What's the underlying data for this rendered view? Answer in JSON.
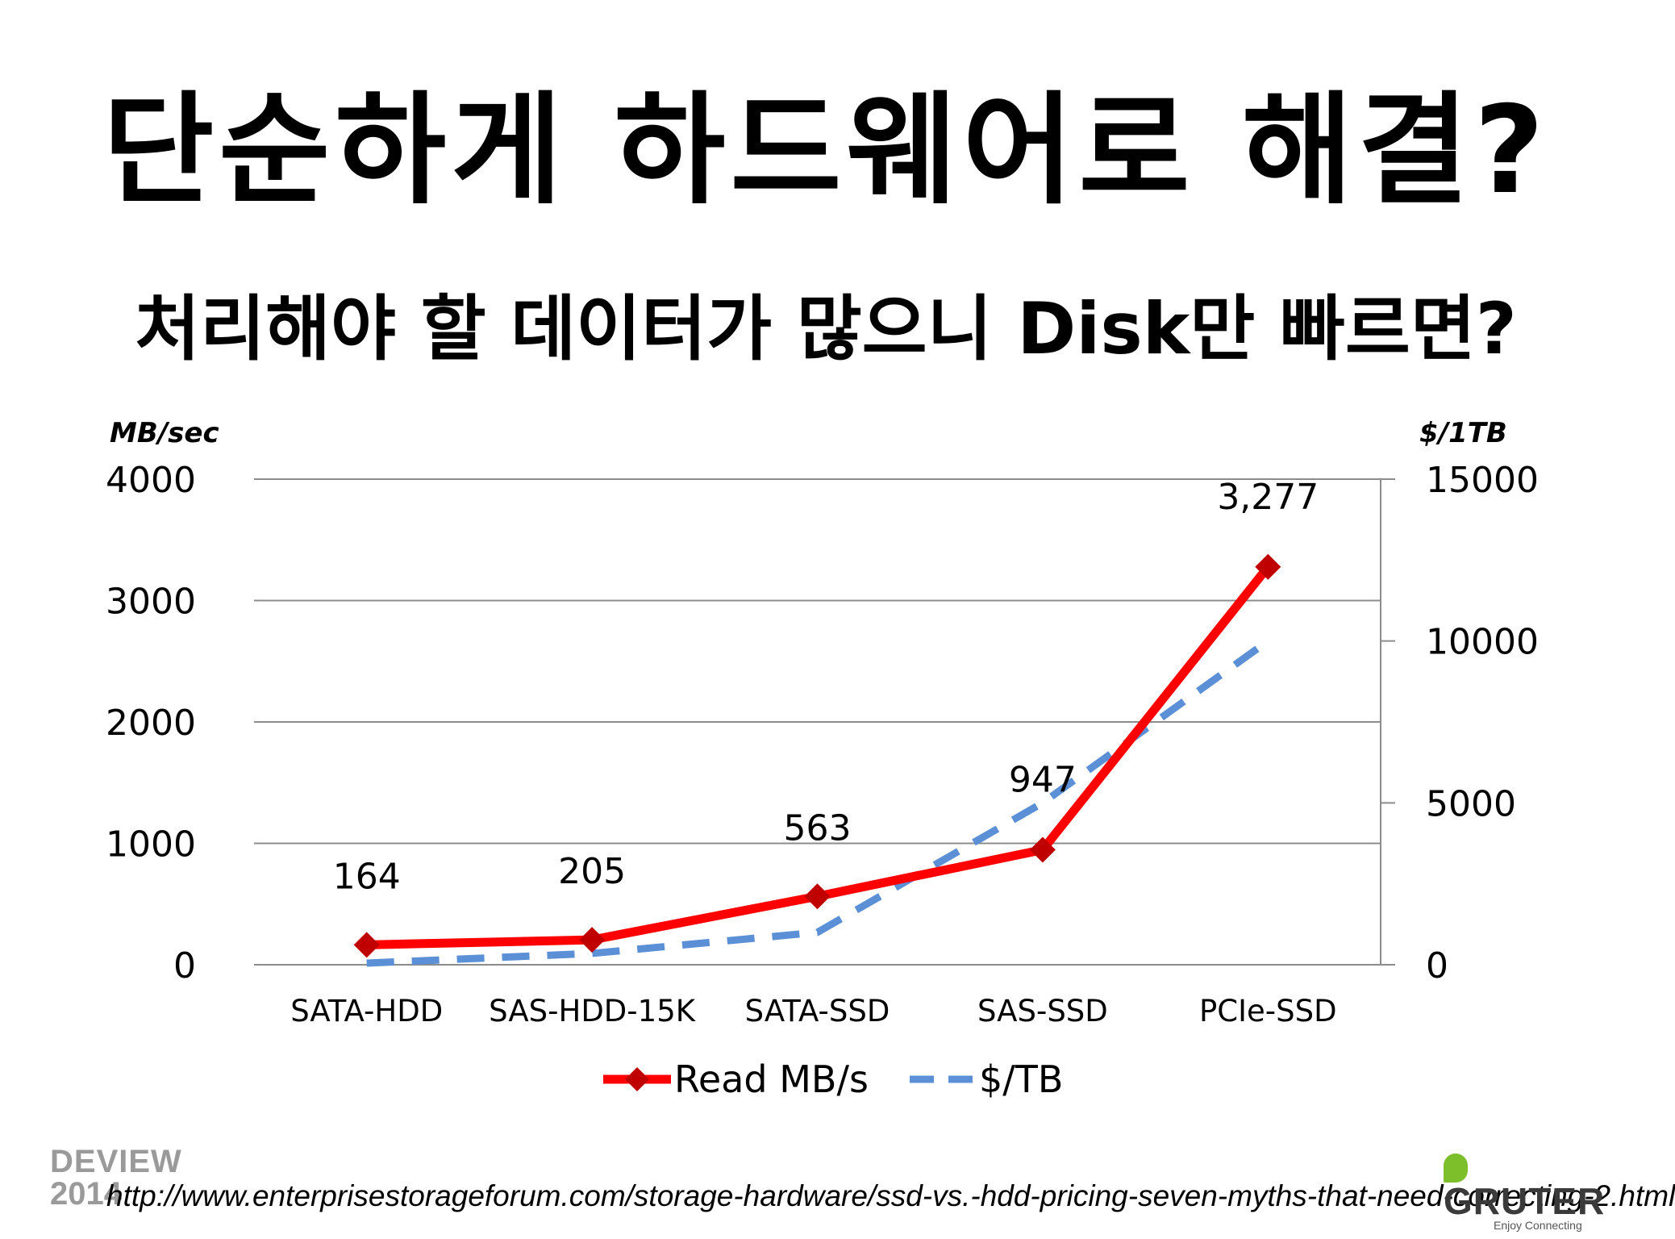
{
  "slide": {
    "title": "단순하게 하드웨어로 해결?",
    "subtitle": "처리해야 할 데이터가 많으니 Disk만 빠르면?",
    "source_url": "http://www.enterprisestorageforum.com/storage-hardware/ssd-vs.-hdd-pricing-seven-myths-that-need-correcting-2.html",
    "logo_left": {
      "line1": "DEVIEW",
      "line2": "2014"
    },
    "logo_right": {
      "name": "GRUTER",
      "tagline": "Enjoy Connecting"
    }
  },
  "chart_data": {
    "type": "line",
    "categories": [
      "SATA-HDD",
      "SAS-HDD-15K",
      "SATA-SSD",
      "SAS-SSD",
      "PCIe-SSD"
    ],
    "series": [
      {
        "name": "Read MB/s",
        "axis": "left",
        "style": "solid-diamond",
        "color": "#ff0000",
        "marker_color": "#c00000",
        "values": [
          164,
          205,
          563,
          947,
          3277
        ],
        "data_labels": [
          "164",
          "205",
          "563",
          "947",
          "3,277"
        ]
      },
      {
        "name": "$/TB",
        "axis": "right",
        "style": "dashed",
        "color": "#5b8fd6",
        "values": [
          50,
          350,
          1000,
          5000,
          10000
        ]
      }
    ],
    "y_left": {
      "label": "MB/sec",
      "min": 0,
      "max": 4000,
      "ticks": [
        0,
        1000,
        2000,
        3000,
        4000
      ]
    },
    "y_right": {
      "label": "$/1TB",
      "min": 0,
      "max": 15000,
      "ticks": [
        0,
        5000,
        10000,
        15000
      ]
    },
    "grid": true,
    "legend": "bottom"
  }
}
